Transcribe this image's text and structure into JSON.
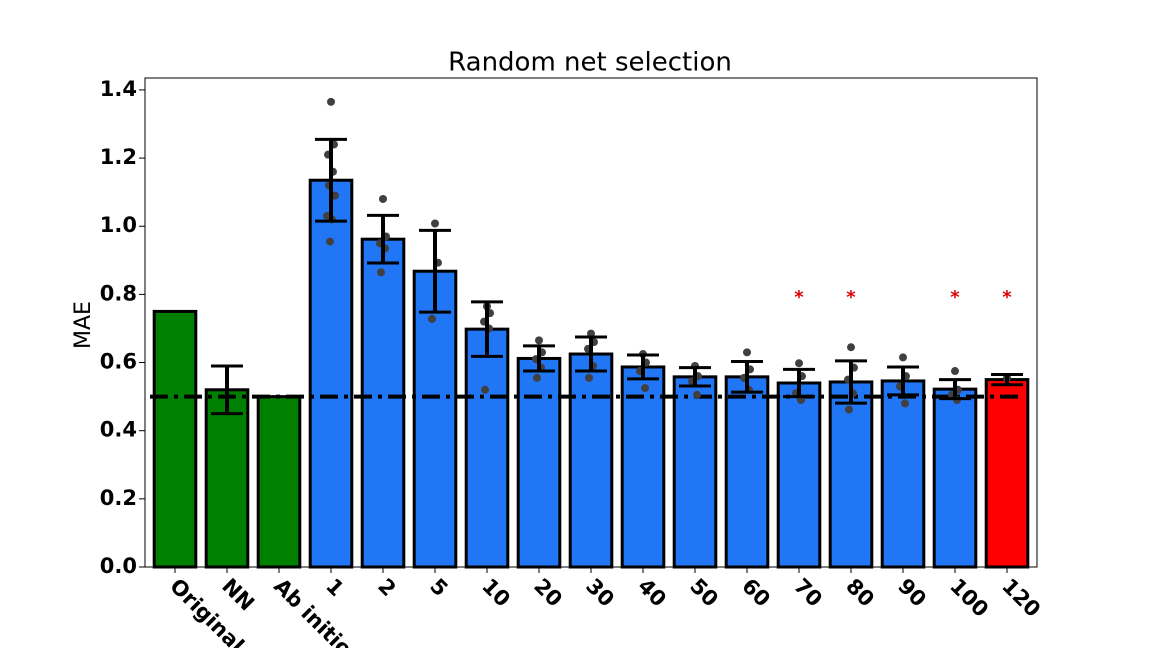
{
  "chart_data": {
    "type": "bar",
    "title": "Random net selection",
    "y_label": "MAE",
    "categories": [
      "Original",
      "NN",
      "Ab initio",
      "1",
      "2",
      "5",
      "10",
      "20",
      "30",
      "40",
      "50",
      "60",
      "70",
      "80",
      "90",
      "100",
      "120"
    ],
    "values": [
      0.75,
      0.52,
      0.5,
      1.135,
      0.962,
      0.868,
      0.698,
      0.612,
      0.625,
      0.587,
      0.558,
      0.558,
      0.54,
      0.543,
      0.546,
      0.522,
      0.55
    ],
    "errors": [
      null,
      0.07,
      null,
      0.12,
      0.07,
      0.12,
      0.08,
      0.037,
      0.05,
      0.035,
      0.027,
      0.045,
      0.04,
      0.062,
      0.041,
      0.028,
      0.015
    ],
    "colors": [
      "#008000",
      "#008000",
      "#008000",
      "#2176f5",
      "#2176f5",
      "#2176f5",
      "#2176f5",
      "#2176f5",
      "#2176f5",
      "#2176f5",
      "#2176f5",
      "#2176f5",
      "#2176f5",
      "#2176f5",
      "#2176f5",
      "#2176f5",
      "#ff0000"
    ],
    "points": [
      null,
      null,
      null,
      [
        1.365,
        1.24,
        1.21,
        1.16,
        1.12,
        1.09,
        1.03,
        1.02,
        0.955
      ],
      [
        1.08,
        0.97,
        0.95,
        0.935,
        0.865
      ],
      [
        1.008,
        0.893,
        0.728
      ],
      [
        0.765,
        0.745,
        0.72,
        0.7,
        0.52
      ],
      [
        0.665,
        0.63,
        0.61,
        0.585,
        0.555
      ],
      [
        0.685,
        0.66,
        0.64,
        0.59,
        0.555
      ],
      [
        0.625,
        0.6,
        0.575,
        0.525
      ],
      [
        0.59,
        0.56,
        0.545,
        0.505
      ],
      [
        0.63,
        0.58,
        0.555,
        0.52
      ],
      [
        0.598,
        0.56,
        0.51,
        0.49
      ],
      [
        0.645,
        0.585,
        0.55,
        0.51,
        0.462
      ],
      [
        0.615,
        0.56,
        0.53,
        0.48
      ],
      [
        0.575,
        0.52,
        0.505,
        0.49
      ],
      [
        0.555
      ]
    ],
    "point_color": "#404040",
    "significance": [
      null,
      null,
      null,
      null,
      null,
      null,
      null,
      null,
      null,
      null,
      null,
      null,
      "*",
      "*",
      null,
      "*",
      "*"
    ],
    "significance_color": "#e00000",
    "reference_line": 0.5,
    "ylim": [
      0,
      1.435
    ],
    "yticks": [
      {
        "value": 0,
        "label": "0.0"
      },
      {
        "value": 0.2,
        "label": "0.2"
      },
      {
        "value": 0.4,
        "label": "0.4"
      },
      {
        "value": 0.6,
        "label": "0.6"
      },
      {
        "value": 0.8,
        "label": "0.8"
      },
      {
        "value": 1.0,
        "label": "1.0"
      },
      {
        "value": 1.2,
        "label": "1.2"
      },
      {
        "value": 1.4,
        "label": "1.4"
      }
    ]
  }
}
